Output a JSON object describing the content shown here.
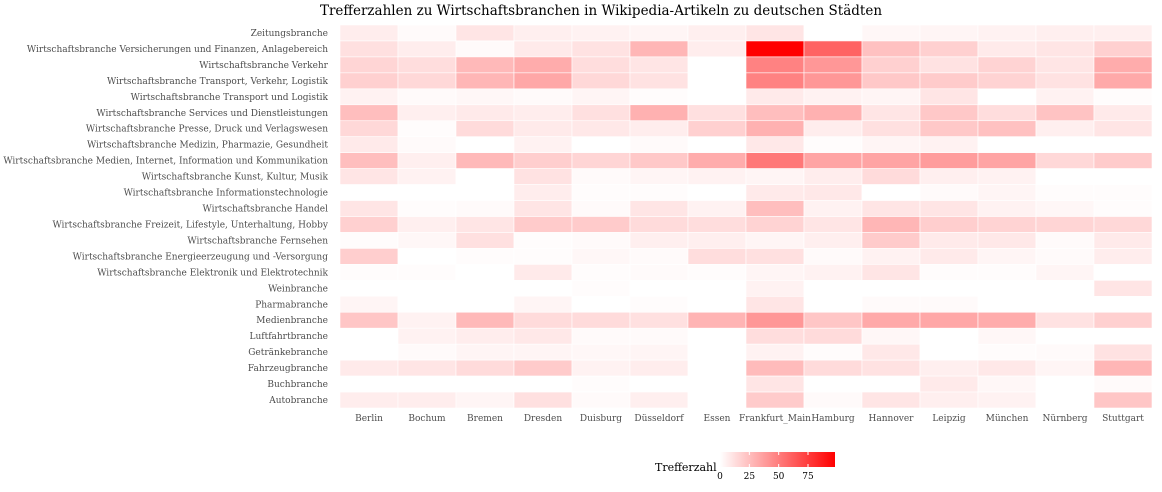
{
  "chart_data": {
    "type": "heatmap",
    "title": "Trefferzahlen zu Wirtschaftsbranchen in Wikipedia-Artikeln zu deutschen Städten",
    "xlabel": "",
    "ylabel": "",
    "x_categories": [
      "Berlin",
      "Bochum",
      "Bremen",
      "Dresden",
      "Duisburg",
      "Düsseldorf",
      "Essen",
      "Frankfurt_Main",
      "Hamburg",
      "Hannover",
      "Leipzig",
      "München",
      "Nürnberg",
      "Stuttgart"
    ],
    "y_categories": [
      "Zeitungsbranche",
      "Wirtschaftsbranche Versicherungen und Finanzen, Anlagebereich",
      "Wirtschaftsbranche Verkehr",
      "Wirtschaftsbranche Transport, Verkehr, Logistik",
      "Wirtschaftsbranche Transport und Logistik",
      "Wirtschaftsbranche Services und Dienstleistungen",
      "Wirtschaftsbranche Presse, Druck und Verlagswesen",
      "Wirtschaftsbranche Medizin, Pharmazie, Gesundheit",
      "Wirtschaftsbranche Medien, Internet, Information und Kommunikation",
      "Wirtschaftsbranche Kunst, Kultur, Musik",
      "Wirtschaftsbranche Informationstechnologie",
      "Wirtschaftsbranche Handel",
      "Wirtschaftsbranche Freizeit, Lifestyle, Unterhaltung, Hobby",
      "Wirtschaftsbranche Fernsehen",
      "Wirtschaftsbranche Energieerzeugung und -Versorgung",
      "Wirtschaftsbranche Elektronik und Elektrotechnik",
      "Weinbranche",
      "Pharmabranche",
      "Medienbranche",
      "Luftfahrtbranche",
      "Getränkebranche",
      "Fahrzeugbranche",
      "Buchbranche",
      "Autobranche"
    ],
    "values": [
      [
        7,
        2,
        10,
        6,
        5,
        4,
        6,
        10,
        0,
        3,
        4,
        5,
        6,
        6
      ],
      [
        12,
        7,
        2,
        8,
        11,
        28,
        7,
        98,
        60,
        24,
        18,
        8,
        10,
        18
      ],
      [
        16,
        13,
        27,
        32,
        13,
        10,
        0,
        48,
        40,
        18,
        11,
        17,
        10,
        32
      ],
      [
        18,
        15,
        28,
        34,
        15,
        11,
        0,
        48,
        40,
        21,
        20,
        17,
        11,
        33
      ],
      [
        5,
        2,
        3,
        2,
        4,
        1,
        0,
        8,
        5,
        4,
        10,
        0,
        5,
        1
      ],
      [
        25,
        6,
        8,
        7,
        12,
        30,
        12,
        25,
        30,
        10,
        21,
        13,
        23,
        8
      ],
      [
        15,
        1,
        14,
        8,
        9,
        7,
        18,
        30,
        7,
        12,
        21,
        24,
        6,
        10
      ],
      [
        8,
        2,
        0,
        5,
        0,
        2,
        0,
        9,
        1,
        4,
        5,
        0,
        0,
        0
      ],
      [
        25,
        6,
        27,
        19,
        16,
        21,
        32,
        52,
        35,
        35,
        38,
        35,
        15,
        20
      ],
      [
        10,
        5,
        0,
        11,
        2,
        4,
        5,
        4,
        7,
        14,
        6,
        5,
        0,
        0
      ],
      [
        0,
        0,
        0,
        7,
        1,
        1,
        0,
        8,
        9,
        0,
        2,
        4,
        1,
        1
      ],
      [
        10,
        1,
        2,
        10,
        2,
        10,
        5,
        25,
        5,
        10,
        10,
        5,
        3,
        1
      ],
      [
        18,
        6,
        10,
        20,
        20,
        14,
        13,
        17,
        10,
        28,
        19,
        17,
        16,
        15
      ],
      [
        1,
        3,
        12,
        1,
        2,
        6,
        6,
        4,
        6,
        20,
        8,
        9,
        2,
        8
      ],
      [
        19,
        0,
        1,
        1,
        3,
        2,
        13,
        12,
        2,
        5,
        8,
        4,
        2,
        7
      ],
      [
        1,
        1,
        0,
        8,
        1,
        2,
        1,
        4,
        5,
        10,
        1,
        1,
        4,
        0
      ],
      [
        0,
        0,
        0,
        0,
        1,
        0,
        0,
        5,
        0,
        0,
        0,
        0,
        0,
        10
      ],
      [
        4,
        0,
        0,
        4,
        0,
        1,
        0,
        10,
        0,
        2,
        2,
        0,
        0,
        0
      ],
      [
        22,
        5,
        27,
        14,
        14,
        12,
        29,
        40,
        22,
        33,
        34,
        32,
        11,
        18
      ],
      [
        0,
        5,
        7,
        9,
        2,
        2,
        0,
        13,
        14,
        3,
        0,
        3,
        0,
        0
      ],
      [
        0,
        2,
        4,
        4,
        3,
        4,
        0,
        5,
        1,
        9,
        0,
        1,
        2,
        11
      ],
      [
        8,
        10,
        14,
        20,
        5,
        7,
        0,
        26,
        14,
        11,
        6,
        9,
        4,
        28
      ],
      [
        0,
        0,
        0,
        0,
        1,
        0,
        0,
        10,
        0,
        0,
        8,
        3,
        0,
        2
      ],
      [
        7,
        7,
        4,
        12,
        2,
        6,
        0,
        20,
        2,
        10,
        6,
        5,
        0,
        22
      ]
    ],
    "color_scale": {
      "low": "#ffffff",
      "high": "#ff0000",
      "min": 0,
      "max": 98
    },
    "legend": {
      "title": "Trefferzahl",
      "ticks": [
        0,
        25,
        50,
        75
      ],
      "tick_labels": [
        "0",
        "25",
        "50",
        "75"
      ],
      "placement": "bottom"
    },
    "grid": false
  }
}
